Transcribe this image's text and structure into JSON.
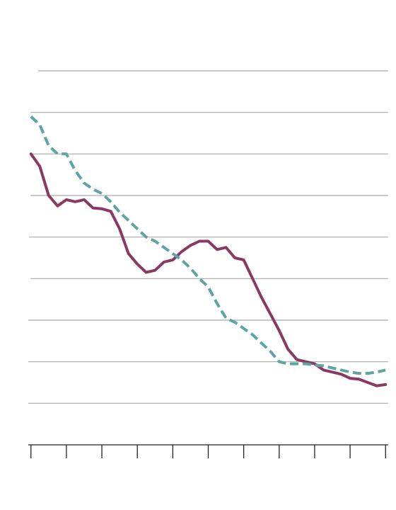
{
  "chart_data": {
    "type": "line",
    "title": "",
    "xlabel": "",
    "ylabel": "",
    "grid": true,
    "legend": "none",
    "x": [
      0,
      1,
      2,
      3,
      4,
      5,
      6,
      7,
      8,
      9,
      10,
      11,
      12,
      13,
      14,
      15,
      16,
      17,
      18,
      19,
      20,
      21,
      22,
      23,
      24,
      25,
      26,
      27,
      28,
      29,
      30,
      31,
      32,
      33,
      34,
      35,
      36,
      37,
      38,
      39,
      40
    ],
    "xlim": [
      -0.3,
      40.3
    ],
    "x_ticks": [
      0,
      4,
      8,
      12,
      16,
      20,
      24,
      28,
      32,
      36,
      40
    ],
    "ylim": [
      0,
      9
    ],
    "y_gridlines": [
      1,
      2,
      3,
      4,
      5,
      6,
      7,
      8,
      9
    ],
    "series": [
      {
        "color": "#8a3a62",
        "dash": "solid",
        "values": [
          7.0,
          6.7,
          6.0,
          5.75,
          5.9,
          5.85,
          5.9,
          5.7,
          5.68,
          5.62,
          5.2,
          4.6,
          4.35,
          4.15,
          4.2,
          4.4,
          4.45,
          4.65,
          4.8,
          4.9,
          4.9,
          4.7,
          4.75,
          4.5,
          4.45,
          4.0,
          3.55,
          3.15,
          2.75,
          2.3,
          2.05,
          2.0,
          1.95,
          1.8,
          1.75,
          1.7,
          1.6,
          1.58,
          1.5,
          1.42,
          1.45
        ]
      },
      {
        "color": "#5fa4a4",
        "dash": "dashed",
        "values": [
          7.9,
          7.7,
          7.2,
          7.0,
          7.0,
          6.6,
          6.3,
          6.15,
          6.05,
          5.85,
          5.6,
          5.4,
          5.2,
          5.0,
          4.9,
          4.75,
          4.6,
          4.45,
          4.25,
          4.0,
          3.8,
          3.4,
          3.05,
          2.95,
          2.8,
          2.65,
          2.45,
          2.25,
          2.0,
          1.95,
          1.95,
          1.95,
          1.92,
          1.9,
          1.85,
          1.8,
          1.75,
          1.72,
          1.72,
          1.75,
          1.8
        ]
      }
    ]
  }
}
